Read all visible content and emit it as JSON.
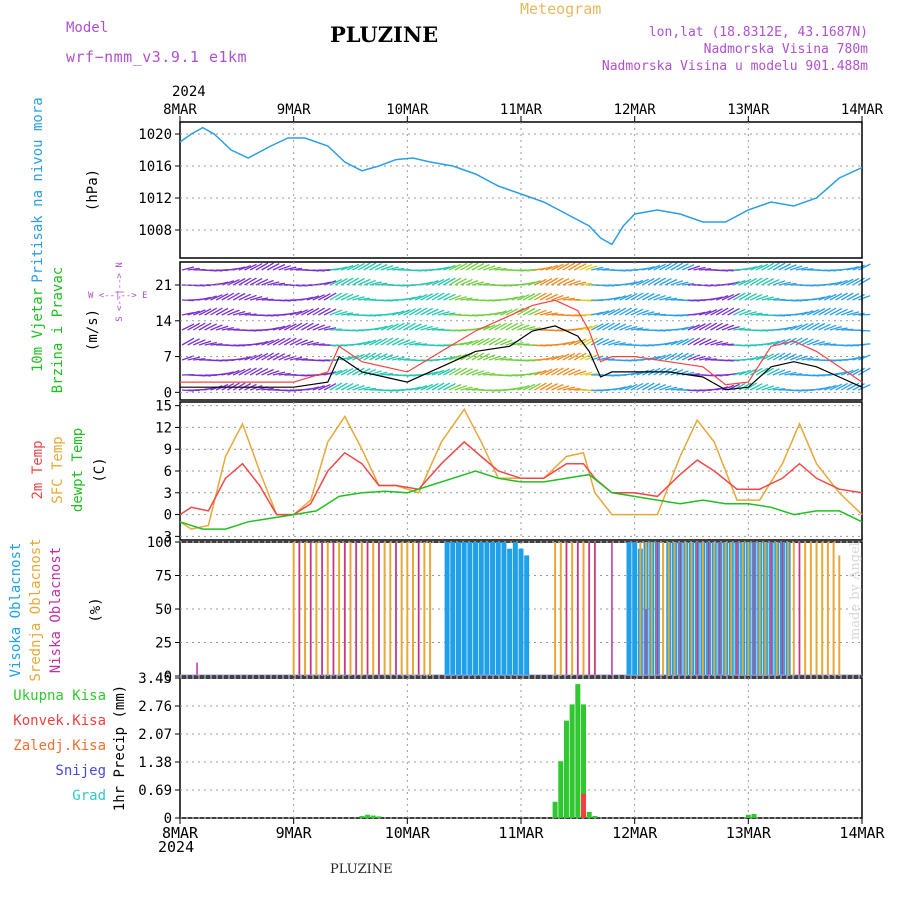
{
  "header": {
    "title": "PLUZINE",
    "model_label": "Model",
    "model_name": "wrf−nmm_v3.9.1 e1km",
    "meteogram_label": "Meteogram",
    "location_lonlat": "lon,lat (18.8312E, 43.1687N)",
    "elevation": "Nadmorska Visina 780m",
    "elevation_model": "Nadmorska Visina u modelu 901.488m"
  },
  "footer": {
    "place": "PLUZINE",
    "credit": "made by Angel"
  },
  "time_axis": {
    "year": "2024",
    "tick_labels": [
      "8MAR",
      "9MAR",
      "10MAR",
      "11MAR",
      "12MAR",
      "13MAR",
      "14MAR"
    ]
  },
  "colors": {
    "pressure": "#2b9fe4",
    "wind_speed": "#000000",
    "gust": "#ff4040",
    "temp_2m": "#f04848",
    "temp_sfc": "#e8a838",
    "dewpoint": "#20c020",
    "cloud_high": "#20a0e8",
    "cloud_mid": "#e8a838",
    "cloud_low": "#c030a8",
    "precip_total": "#30c830",
    "precip_conv": "#f04040"
  },
  "chart_data": [
    {
      "type": "line",
      "ylabel_lines": [
        "Pritisak na nivou mora",
        "(hPa)"
      ],
      "ylim": [
        1004.5,
        1021.5
      ],
      "yticks": [
        1008,
        1012,
        1016,
        1020
      ],
      "grid": true,
      "x_unit": "days since 8MAR 00UTC",
      "series": [
        {
          "name": "Pritisak na nivou mora",
          "x": [
            0,
            0.1,
            0.2,
            0.3,
            0.45,
            0.6,
            0.8,
            0.95,
            1.1,
            1.3,
            1.45,
            1.6,
            1.75,
            1.9,
            2.05,
            2.2,
            2.4,
            2.6,
            2.8,
            3.0,
            3.2,
            3.4,
            3.6,
            3.7,
            3.8,
            3.9,
            4.0,
            4.2,
            4.4,
            4.6,
            4.8,
            5.0,
            5.2,
            5.4,
            5.6,
            5.8,
            6.0
          ],
          "values": [
            1019,
            1020,
            1020.8,
            1020,
            1018,
            1017,
            1018.5,
            1019.5,
            1019.5,
            1018.5,
            1016.5,
            1015.4,
            1016,
            1016.8,
            1017,
            1016.5,
            1016,
            1015,
            1013.5,
            1012.5,
            1011.5,
            1010,
            1008.5,
            1007,
            1006.2,
            1008.5,
            1010,
            1010.5,
            1010,
            1009,
            1009,
            1010.5,
            1011.5,
            1011,
            1012,
            1014.5,
            1015.8
          ]
        }
      ]
    },
    {
      "type": "line",
      "ylabel_lines": [
        "10m Vjetar",
        "Brzina i Pravac",
        "(m/s)"
      ],
      "ylim": [
        -1.5,
        25.5
      ],
      "yticks": [
        0,
        7,
        14,
        21
      ],
      "grid": true,
      "series": [
        {
          "name": "Brzina",
          "x": [
            0,
            0.5,
            1.0,
            1.3,
            1.4,
            1.6,
            1.8,
            2.0,
            2.3,
            2.6,
            2.9,
            3.1,
            3.3,
            3.5,
            3.6,
            3.7,
            3.8,
            4.0,
            4.3,
            4.6,
            4.8,
            5.0,
            5.2,
            5.4,
            5.6,
            5.8,
            6.0
          ],
          "values": [
            1,
            1,
            1,
            2,
            7,
            4,
            3,
            2,
            5,
            8,
            9,
            12,
            13,
            11,
            8,
            3,
            4,
            4,
            4,
            3,
            0.5,
            1,
            5,
            6,
            5,
            3,
            1
          ]
        },
        {
          "name": "Udari",
          "x": [
            0,
            0.5,
            1.0,
            1.3,
            1.4,
            1.6,
            1.8,
            2.0,
            2.3,
            2.6,
            2.9,
            3.1,
            3.3,
            3.5,
            3.6,
            3.7,
            3.8,
            4.0,
            4.3,
            4.6,
            4.8,
            5.0,
            5.2,
            5.4,
            5.6,
            5.8,
            6.0
          ],
          "values": [
            2,
            2,
            2,
            4,
            9,
            6,
            5,
            4,
            8,
            12,
            15,
            17,
            18,
            16,
            12,
            6,
            7,
            7,
            6,
            5,
            1.5,
            2,
            9,
            10,
            8,
            5,
            2
          ]
        }
      ]
    },
    {
      "type": "line",
      "ylabel_lines": [
        "2m Temp",
        "SFC Temp",
        "dewpt Temp",
        "(C)"
      ],
      "ylim": [
        -3.5,
        15.5
      ],
      "yticks": [
        -3,
        0,
        3,
        6,
        9,
        12,
        15
      ],
      "grid": true,
      "series": [
        {
          "name": "2m Temp",
          "x": [
            0,
            0.1,
            0.25,
            0.4,
            0.55,
            0.7,
            0.85,
            1.0,
            1.15,
            1.3,
            1.45,
            1.6,
            1.75,
            1.9,
            2.1,
            2.3,
            2.5,
            2.65,
            2.8,
            3.0,
            3.2,
            3.4,
            3.55,
            3.65,
            3.8,
            4.0,
            4.2,
            4.4,
            4.55,
            4.7,
            4.9,
            5.1,
            5.3,
            5.45,
            5.6,
            5.8,
            6.0
          ],
          "values": [
            0,
            1,
            0.5,
            5,
            7,
            4,
            0,
            0,
            1.5,
            6,
            8.5,
            7,
            4,
            4,
            3.5,
            7,
            10,
            8,
            6,
            5,
            5,
            7,
            7,
            5,
            3,
            3,
            2.5,
            5.5,
            7.5,
            6,
            3.5,
            3.5,
            5,
            7,
            5,
            3.5,
            3
          ]
        },
        {
          "name": "SFC Temp",
          "x": [
            0,
            0.1,
            0.25,
            0.4,
            0.55,
            0.7,
            0.85,
            1.0,
            1.15,
            1.3,
            1.45,
            1.6,
            1.75,
            1.9,
            2.1,
            2.3,
            2.5,
            2.65,
            2.8,
            3.0,
            3.2,
            3.4,
            3.55,
            3.65,
            3.8,
            4.0,
            4.2,
            4.4,
            4.55,
            4.7,
            4.9,
            5.1,
            5.3,
            5.45,
            5.6,
            5.8,
            6.0
          ],
          "values": [
            -1,
            -2,
            -1.5,
            8,
            12.5,
            6,
            0,
            0,
            2,
            10,
            13.5,
            9,
            4,
            4,
            3,
            10,
            14.5,
            10,
            5,
            5,
            5,
            8,
            8.5,
            3,
            0,
            0,
            0,
            8,
            13,
            10,
            2,
            2,
            7,
            12.5,
            7,
            3,
            0
          ]
        },
        {
          "name": "dewpt Temp",
          "x": [
            0,
            0.2,
            0.4,
            0.6,
            0.8,
            1.0,
            1.2,
            1.4,
            1.6,
            1.8,
            2.0,
            2.2,
            2.4,
            2.6,
            2.8,
            3.0,
            3.2,
            3.4,
            3.6,
            3.8,
            4.0,
            4.2,
            4.4,
            4.6,
            4.8,
            5.0,
            5.2,
            5.4,
            5.6,
            5.8,
            6.0
          ],
          "values": [
            -1,
            -2,
            -2,
            -1,
            -0.5,
            0,
            0.5,
            2.5,
            3,
            3.2,
            3,
            4,
            5,
            6,
            5,
            4.5,
            4.5,
            5,
            5.5,
            3,
            2.5,
            2,
            1.5,
            2,
            1.5,
            1.5,
            1,
            0,
            0.5,
            0.5,
            -1
          ]
        }
      ]
    },
    {
      "type": "bar",
      "ylabel_lines": [
        "Visoka Oblacnost",
        "Srednja Oblacnost",
        "Niska Oblacnost",
        "(%)"
      ],
      "ylim": [
        0,
        100
      ],
      "yticks": [
        0,
        25,
        50,
        75,
        100
      ],
      "grid": true,
      "series": [
        {
          "name": "Visoka Oblacnost",
          "x": [
            2.35,
            2.4,
            2.45,
            2.5,
            2.55,
            2.6,
            2.65,
            2.7,
            2.75,
            2.8,
            2.85,
            2.9,
            2.95,
            3.0,
            3.05,
            3.95,
            4.0,
            4.05,
            4.1,
            4.15,
            4.2,
            4.3,
            4.35,
            4.4,
            4.45,
            4.5,
            4.55,
            4.6,
            4.65,
            4.7,
            4.75,
            4.8,
            4.85,
            4.9,
            4.95,
            5.0,
            5.05,
            5.1,
            5.15,
            5.2,
            5.25,
            5.3,
            5.35
          ],
          "values": [
            100,
            100,
            100,
            100,
            100,
            100,
            100,
            100,
            100,
            100,
            100,
            95,
            100,
            95,
            90,
            100,
            100,
            95,
            100,
            100,
            100,
            100,
            100,
            100,
            100,
            100,
            100,
            100,
            100,
            100,
            100,
            100,
            100,
            100,
            100,
            100,
            100,
            100,
            100,
            100,
            100,
            100,
            100
          ]
        },
        {
          "name": "Srednja Oblacnost",
          "x": [
            1.0,
            1.05,
            1.1,
            1.15,
            1.2,
            1.25,
            1.3,
            1.35,
            1.4,
            1.45,
            1.5,
            1.55,
            1.6,
            1.65,
            1.7,
            1.75,
            1.8,
            1.85,
            1.9,
            1.95,
            2.0,
            2.05,
            2.1,
            2.15,
            2.2,
            3.3,
            3.35,
            3.4,
            3.45,
            3.5,
            3.55,
            3.6,
            3.65,
            4.05,
            4.1,
            4.15,
            4.2,
            4.25,
            4.3,
            4.35,
            4.4,
            4.45,
            4.5,
            4.55,
            4.6,
            4.65,
            4.7,
            4.75,
            4.8,
            4.85,
            4.9,
            4.95,
            5.0,
            5.05,
            5.1,
            5.15,
            5.2,
            5.25,
            5.3,
            5.35,
            5.4,
            5.45,
            5.5,
            5.55,
            5.6,
            5.65,
            5.7,
            5.75,
            5.8
          ],
          "values": [
            100,
            100,
            100,
            100,
            100,
            100,
            100,
            100,
            100,
            100,
            100,
            100,
            100,
            100,
            100,
            100,
            100,
            100,
            100,
            100,
            100,
            100,
            100,
            100,
            100,
            100,
            100,
            100,
            100,
            100,
            100,
            100,
            100,
            100,
            100,
            100,
            100,
            100,
            100,
            100,
            100,
            100,
            100,
            100,
            100,
            100,
            100,
            100,
            100,
            100,
            100,
            100,
            100,
            100,
            100,
            100,
            100,
            100,
            100,
            100,
            100,
            100,
            100,
            100,
            100,
            100,
            100,
            100,
            90
          ]
        },
        {
          "name": "Niska Oblacnost",
          "x": [
            0.15,
            1.05,
            1.15,
            1.25,
            1.35,
            1.45,
            1.55,
            1.65,
            1.75,
            1.9,
            2.1,
            3.4,
            3.5,
            3.6,
            3.65,
            3.8,
            4.1,
            4.2,
            4.4,
            4.55,
            4.65,
            4.75,
            4.9,
            5.05,
            5.2,
            5.3,
            5.45
          ],
          "values": [
            10,
            100,
            100,
            100,
            100,
            100,
            100,
            100,
            100,
            100,
            100,
            100,
            100,
            100,
            100,
            100,
            50,
            100,
            100,
            100,
            100,
            100,
            100,
            100,
            100,
            100,
            100
          ]
        }
      ]
    },
    {
      "type": "bar",
      "ylabel_lines": [
        "1hr Precip (mm)"
      ],
      "legend": [
        "Ukupna Kisa",
        "Konvek.Kisa",
        "Zaledj.Kisa",
        "Snijeg",
        "Grad"
      ],
      "legend_colors": [
        "#30c830",
        "#f04040",
        "#f07030",
        "#4848e0",
        "#30c8c8"
      ],
      "ylim": [
        0,
        3.45
      ],
      "yticks": [
        0,
        0.69,
        1.38,
        2.07,
        2.76,
        3.45
      ],
      "grid": true,
      "series": [
        {
          "name": "Ukupna Kisa",
          "x": [
            1.6,
            1.65,
            1.7,
            1.75,
            3.3,
            3.35,
            3.4,
            3.45,
            3.5,
            3.55,
            3.6,
            3.65,
            5.0,
            5.05
          ],
          "values": [
            0.05,
            0.08,
            0.06,
            0.04,
            0.4,
            1.4,
            2.4,
            2.8,
            3.3,
            2.8,
            0.15,
            0.05,
            0.08,
            0.1
          ]
        },
        {
          "name": "Konvek.Kisa",
          "x": [
            3.55
          ],
          "values": [
            0.6
          ]
        }
      ]
    }
  ]
}
